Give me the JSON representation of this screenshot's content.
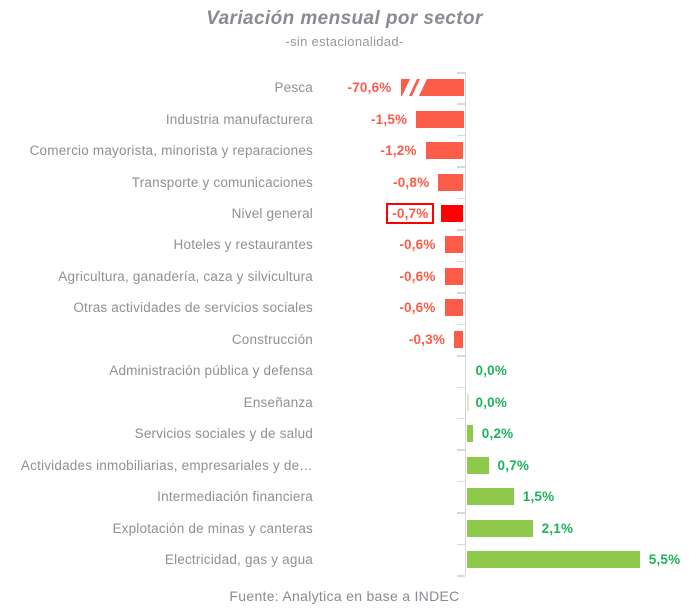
{
  "header": {
    "title": "Variación mensual por sector",
    "subtitle": "-sin estacionalidad-"
  },
  "footer": {
    "source": "Fuente: Analytica en base a INDEC"
  },
  "colors": {
    "negative_bar": "#FB5B47",
    "negative_text": "#FB5B47",
    "highlight_bar": "#FE0000",
    "highlight_border": "#FE0000",
    "positive_bar": "#8FC94B",
    "positive_text": "#1DB35B",
    "zero_sliver_bar": "#D9ECC0",
    "label_text": "#8F8F97",
    "axis_line": "#D9D9D9"
  },
  "chart_data": {
    "type": "bar",
    "orientation": "horizontal",
    "title": "Variación mensual por sector",
    "subtitle": "-sin estacionalidad-",
    "source": "Fuente: Analytica en base a INDEC",
    "unit": "%",
    "value_format": "decimal-comma-percent",
    "categories": [
      "Pesca",
      "Industria manufacturera",
      "Comercio mayorista, minorista y reparaciones",
      "Transporte y comunicaciones",
      "Nivel general",
      "Hoteles y restaurantes",
      "Agricultura, ganadería, caza y silvicultura",
      "Otras actividades de servicios sociales",
      "Construcción",
      "Administración pública y defensa",
      "Enseñanza",
      "Servicios sociales y de salud",
      "Actividades inmobiliarias, empresariales y de…",
      "Intermediación financiera",
      "Explotación de minas y canteras",
      "Electricidad, gas y agua"
    ],
    "values": [
      -70.6,
      -1.5,
      -1.2,
      -0.8,
      -0.7,
      -0.6,
      -0.6,
      -0.6,
      -0.3,
      0.0,
      0.0,
      0.2,
      0.7,
      1.5,
      2.1,
      5.5
    ],
    "value_labels": [
      "-70,6%",
      "-1,5%",
      "-1,2%",
      "-0,8%",
      "-0,7%",
      "-0,6%",
      "-0,6%",
      "-0,6%",
      "-0,3%",
      "0,0%",
      "0,0%",
      "0,2%",
      "0,7%",
      "1,5%",
      "2,1%",
      "5,5%"
    ],
    "highlight_index": 4,
    "broken_index": 0,
    "zero_sliver_index": 10,
    "legend": "none",
    "grid": "off",
    "axis_break_note": "Pesca bar truncated with white break marks"
  }
}
